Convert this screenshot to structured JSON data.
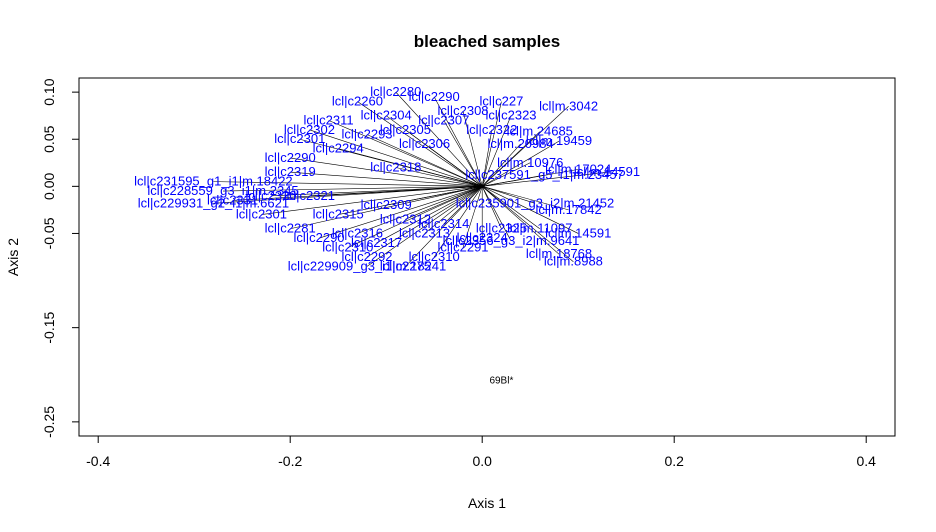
{
  "chart_data": {
    "type": "scatter",
    "title": "bleached samples",
    "xlabel": "Axis 1",
    "ylabel": "Axis 2",
    "xlim": [
      -0.42,
      0.43
    ],
    "ylim": [
      -0.265,
      0.115
    ],
    "x_ticks": [
      "-0.4",
      "-0.2",
      "0.0",
      "0.2",
      "0.4"
    ],
    "x_tick_values": [
      -0.4,
      -0.2,
      0.0,
      0.2,
      0.4
    ],
    "y_ticks": [
      "0.10",
      "0.05",
      "0.00",
      "-0.05",
      "-0.15",
      "-0.25"
    ],
    "y_tick_values": [
      0.1,
      0.05,
      0.0,
      -0.05,
      -0.15,
      -0.25
    ],
    "grid": false,
    "colors": {
      "variables": "#0000ff",
      "arrows": "#000000",
      "samples": "#000000"
    },
    "samples": [
      {
        "label": "69Bl*",
        "x": 0.02,
        "y": -0.205
      }
    ],
    "variables": [
      {
        "label": "lcl|c237591_g5_i1|m.23457",
        "x": 0.065,
        "y": 0.012
      },
      {
        "label": "lcl|c235901_g3_i2|m.21452",
        "x": 0.055,
        "y": -0.018
      },
      {
        "label": "lcl|c2356_g3_i2|m.9641",
        "x": 0.03,
        "y": -0.058
      },
      {
        "label": "lcl|m.18768",
        "x": 0.08,
        "y": -0.072
      },
      {
        "label": "lcl|m.8988",
        "x": 0.095,
        "y": -0.08
      },
      {
        "label": "lcl|m.24685",
        "x": 0.06,
        "y": 0.058
      },
      {
        "label": "lcl|m.20984",
        "x": 0.04,
        "y": 0.045
      },
      {
        "label": "lcl|m.10976",
        "x": 0.05,
        "y": 0.025
      },
      {
        "label": "lcl|m.19459",
        "x": 0.08,
        "y": 0.048
      },
      {
        "label": "lcl|m.3042",
        "x": 0.09,
        "y": 0.085
      },
      {
        "label": "lcl|m.17024",
        "x": 0.1,
        "y": 0.018
      },
      {
        "label": "lcl|m.14591",
        "x": 0.13,
        "y": 0.015
      },
      {
        "label": "lcl|m.17842",
        "x": 0.09,
        "y": -0.025
      },
      {
        "label": "lcl|m.11097",
        "x": 0.06,
        "y": -0.045
      },
      {
        "label": "lcl|m.14591",
        "x": 0.1,
        "y": -0.05
      },
      {
        "label": "lcl|c227",
        "x": 0.02,
        "y": 0.09
      },
      {
        "label": "lcl|c2290",
        "x": -0.05,
        "y": 0.095
      },
      {
        "label": "lcl|c2280",
        "x": -0.09,
        "y": 0.1
      },
      {
        "label": "lcl|c2260",
        "x": -0.13,
        "y": 0.09
      },
      {
        "label": "lcl|c2311",
        "x": -0.16,
        "y": 0.07
      },
      {
        "label": "lcl|c2301",
        "x": -0.19,
        "y": 0.05
      },
      {
        "label": "lcl|c2290",
        "x": -0.2,
        "y": 0.03
      },
      {
        "label": "lcl|c231595_g1_i1|m.18422",
        "x": -0.28,
        "y": 0.005
      },
      {
        "label": "lcl|c228559_g3_i1|m.2345",
        "x": -0.27,
        "y": -0.005
      },
      {
        "label": "lcl|c229931_g2_i1|m.6621",
        "x": -0.28,
        "y": -0.018
      },
      {
        "label": "lcl|c2331",
        "x": -0.26,
        "y": -0.015
      },
      {
        "label": "lcl|c2301",
        "x": -0.23,
        "y": -0.03
      },
      {
        "label": "lcl|c2281",
        "x": -0.2,
        "y": -0.045
      },
      {
        "label": "lcl|c2290",
        "x": -0.17,
        "y": -0.055
      },
      {
        "label": "lcl|c2310",
        "x": -0.14,
        "y": -0.065
      },
      {
        "label": "lcl|c2292",
        "x": -0.12,
        "y": -0.075
      },
      {
        "label": "lcl|c229909_g3_i1|m.18241",
        "x": -0.12,
        "y": -0.085
      },
      {
        "label": "lcl|c2275",
        "x": -0.08,
        "y": -0.085
      },
      {
        "label": "lcl|c2310",
        "x": -0.05,
        "y": -0.075
      },
      {
        "label": "lcl|c2291",
        "x": -0.02,
        "y": -0.065
      },
      {
        "label": "lcl|c2302",
        "x": -0.18,
        "y": 0.06
      },
      {
        "label": "lcl|c2294",
        "x": -0.15,
        "y": 0.04
      },
      {
        "label": "lcl|c2293",
        "x": -0.12,
        "y": 0.055
      },
      {
        "label": "lcl|c2304",
        "x": -0.1,
        "y": 0.075
      },
      {
        "label": "lcl|c2305",
        "x": -0.08,
        "y": 0.06
      },
      {
        "label": "lcl|c2306",
        "x": -0.06,
        "y": 0.045
      },
      {
        "label": "lcl|c2307",
        "x": -0.04,
        "y": 0.07
      },
      {
        "label": "lcl|c2308",
        "x": -0.02,
        "y": 0.08
      },
      {
        "label": "lcl|c2309",
        "x": -0.1,
        "y": -0.02
      },
      {
        "label": "lcl|c2312",
        "x": -0.08,
        "y": -0.035
      },
      {
        "label": "lcl|c2313",
        "x": -0.06,
        "y": -0.05
      },
      {
        "label": "lcl|c2314",
        "x": -0.04,
        "y": -0.04
      },
      {
        "label": "lcl|c2315",
        "x": -0.15,
        "y": -0.03
      },
      {
        "label": "lcl|c2316",
        "x": -0.13,
        "y": -0.05
      },
      {
        "label": "lcl|c2317",
        "x": -0.11,
        "y": -0.06
      },
      {
        "label": "lcl|c2318",
        "x": -0.09,
        "y": 0.02
      },
      {
        "label": "lcl|c2319",
        "x": -0.2,
        "y": 0.015
      },
      {
        "label": "lcl|c2320",
        "x": -0.22,
        "y": -0.01
      },
      {
        "label": "lcl|c2321",
        "x": -0.18,
        "y": -0.01
      },
      {
        "label": "lcl|c2322",
        "x": 0.01,
        "y": 0.06
      },
      {
        "label": "lcl|c2323",
        "x": 0.03,
        "y": 0.075
      },
      {
        "label": "lcl|c2324",
        "x": 0.0,
        "y": -0.055
      },
      {
        "label": "lcl|c2325",
        "x": 0.02,
        "y": -0.045
      }
    ]
  }
}
